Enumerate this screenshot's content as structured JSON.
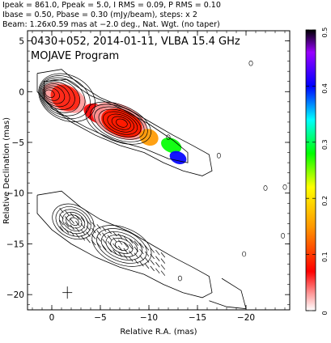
{
  "header": {
    "line1": "Ipeak = 861.0, Ppeak = 5.0, I RMS = 0.09, P RMS = 0.10",
    "line2": "Ibase = 0.50, Pbase = 0.30 (mJy/beam), steps: x 2",
    "line3": "Beam: 1.26x0.59 mas at −2.0 deg., Nat. Wgt. (no taper)"
  },
  "chart_data": {
    "type": "heatmap",
    "title": "0430+052, 2014-01-11, VLBA 15.4 GHz",
    "subtitle": "MOJAVE Program",
    "xlabel": "Relative R.A. (mas)",
    "ylabel": "Relative Declination (mas)",
    "xlim": [
      2.5,
      -24.5
    ],
    "ylim": [
      -21.5,
      6
    ],
    "x_ticks": [
      0,
      -5,
      -10,
      -15,
      -20
    ],
    "x_tick_labels": [
      "0",
      "−5",
      "−10",
      "−15",
      "−20"
    ],
    "y_ticks": [
      5,
      0,
      -5,
      -10,
      -15,
      -20
    ],
    "y_tick_labels": [
      "5",
      "0",
      "−5",
      "−10",
      "−15",
      "−20"
    ],
    "colorbar": {
      "range": [
        0,
        0.5
      ],
      "ticks": [
        0,
        0.1,
        0.2,
        0.3,
        0.4,
        0.5
      ],
      "tick_labels": [
        "0",
        "0.1",
        "0.2",
        "0.3",
        "0.4",
        "0.5"
      ]
    },
    "upper_panel": {
      "description": "total intensity contours with fractional polarization color",
      "jet_ridge": [
        [
          0.5,
          0.3
        ],
        [
          -2,
          -0.8
        ],
        [
          -5,
          -2.3
        ],
        [
          -8,
          -3.7
        ],
        [
          -11,
          -5
        ],
        [
          -13,
          -6.2
        ],
        [
          -16,
          -7.5
        ]
      ],
      "color_blobs": [
        {
          "x": -1.3,
          "y": -0.6,
          "level": 0.05
        },
        {
          "x": -4.8,
          "y": -2.2,
          "level": 0.1
        },
        {
          "x": -7.0,
          "y": -2.9,
          "level": 0.06
        },
        {
          "x": -10.0,
          "y": -4.5,
          "level": 0.2
        },
        {
          "x": -12.3,
          "y": -5.3,
          "level": 0.3
        },
        {
          "x": -13.0,
          "y": -6.5,
          "level": 0.4
        }
      ]
    },
    "lower_panel": {
      "description": "total intensity contours with EVPA sticks",
      "offset_y": -12
    }
  }
}
